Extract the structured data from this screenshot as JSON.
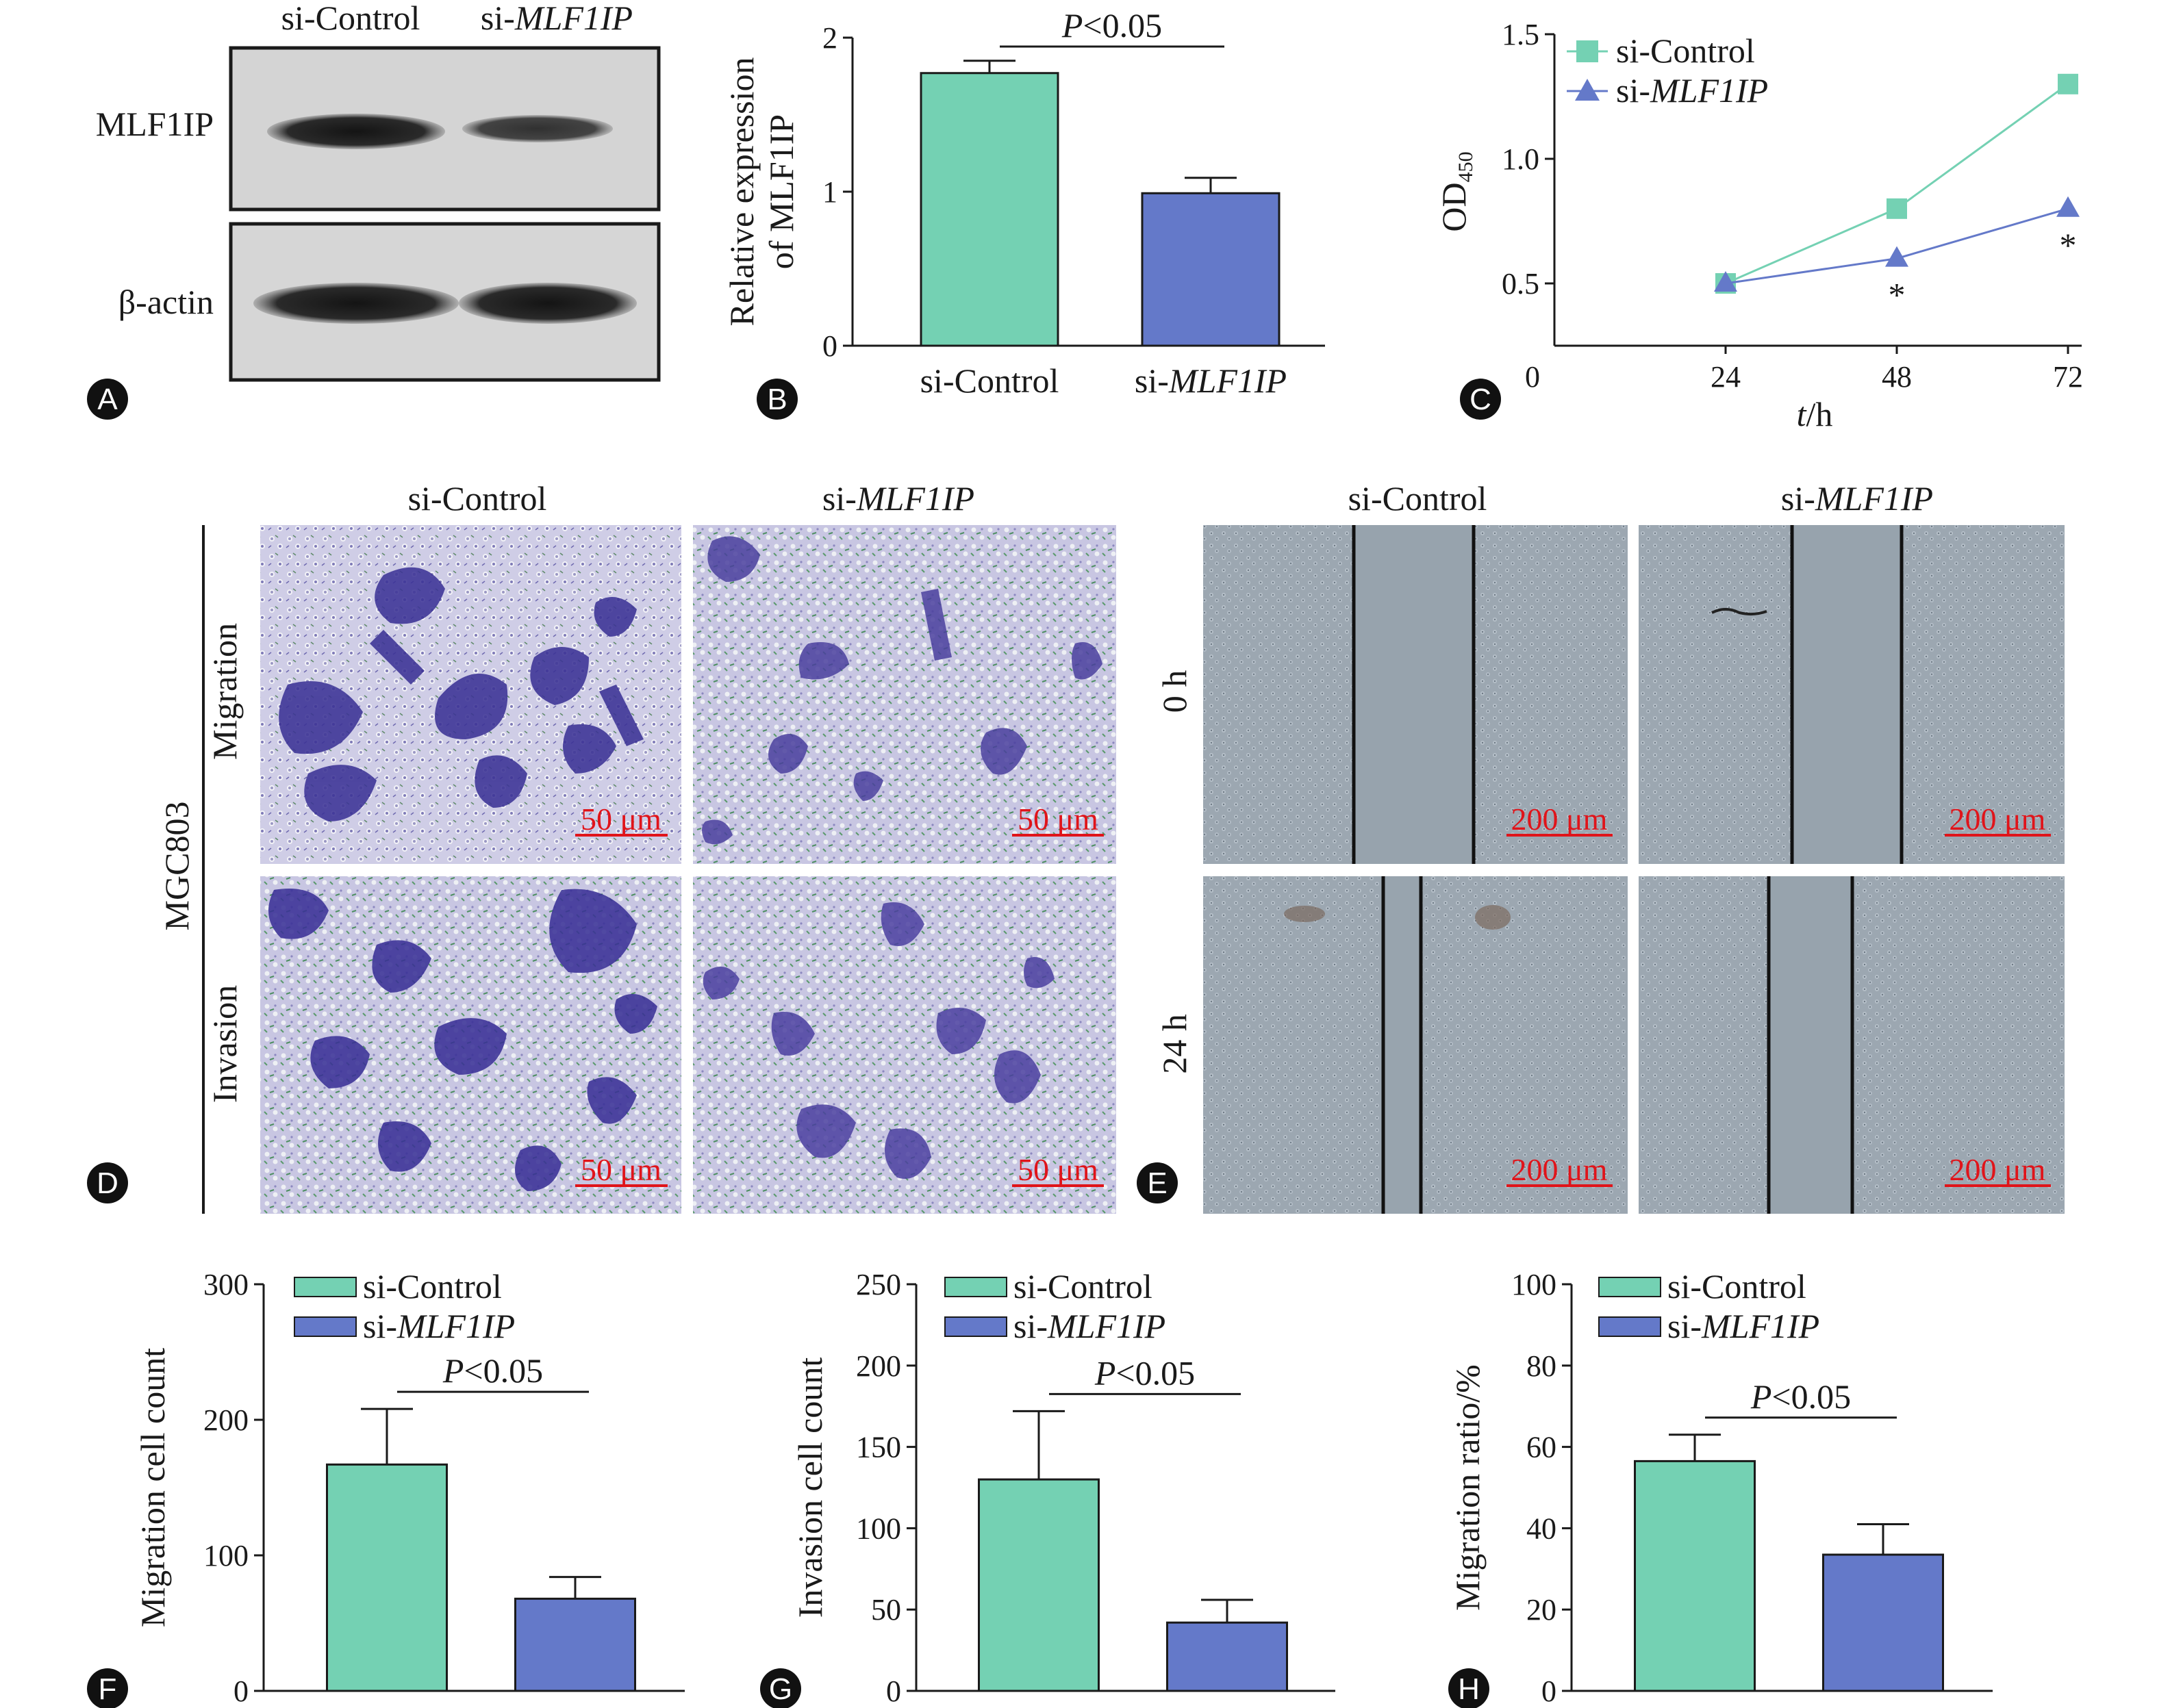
{
  "colors": {
    "control": "#74d1b3",
    "knockdown": "#6479c9",
    "scale_red": "#e0141a",
    "axis": "#1a1a1a"
  },
  "panel_letters": [
    "A",
    "B",
    "C",
    "D",
    "E",
    "F",
    "G",
    "H"
  ],
  "groups": {
    "prefix": "si-",
    "control": "si-Control",
    "knockdown_gene": "MLF1IP"
  },
  "panelA": {
    "row1": "MLF1IP",
    "row2": "β-actin"
  },
  "panelD": {
    "cell_line": "MGC803",
    "row1": "Migration",
    "row2": "Invasion",
    "scale": "50 μm"
  },
  "panelE": {
    "row1": "0 h",
    "row2": "24 h",
    "scale": "200 μm"
  },
  "chart_data": [
    {
      "panel": "B",
      "type": "bar",
      "ylabel_line1": "Relative expression",
      "ylabel_line2": "of MLF1IP",
      "ylim": [
        0,
        2
      ],
      "yticks": [
        "0",
        "1",
        "2"
      ],
      "categories": [
        "si-Control",
        "si-MLF1IP"
      ],
      "values": [
        1.77,
        0.99
      ],
      "errors": [
        0.08,
        0.1
      ],
      "sig": {
        "p": "P",
        "rest": "<0.05"
      }
    },
    {
      "panel": "C",
      "type": "line",
      "ylabel_main": "OD",
      "ylabel_sub": "450",
      "xlabel_italic": "t",
      "xlabel_rest": "/h",
      "origin": "0",
      "x": [
        24,
        48,
        72
      ],
      "xticks": [
        "24",
        "48",
        "72"
      ],
      "ylim": [
        0.25,
        1.5
      ],
      "yticks": [
        "0.5",
        "1.0",
        "1.5"
      ],
      "series": [
        {
          "name": "si-Control",
          "values": [
            0.5,
            0.8,
            1.3
          ]
        },
        {
          "name": "si-MLF1IP",
          "values": [
            0.5,
            0.6,
            0.8
          ]
        }
      ],
      "annotations": [
        "*",
        "*"
      ],
      "legend": "top-left"
    },
    {
      "panel": "F",
      "type": "bar",
      "ylabel": "Migration cell count",
      "ylim": [
        0,
        300
      ],
      "yticks": [
        "0",
        "100",
        "200",
        "300"
      ],
      "categories": [
        "si-Control",
        "si-MLF1IP"
      ],
      "values": [
        167,
        68
      ],
      "errors": [
        41,
        16
      ],
      "sig": {
        "p": "P",
        "rest": "<0.05"
      },
      "legend": "top-left"
    },
    {
      "panel": "G",
      "type": "bar",
      "ylabel": "Invasion cell count",
      "ylim": [
        0,
        250
      ],
      "yticks": [
        "0",
        "50",
        "100",
        "150",
        "200",
        "250"
      ],
      "categories": [
        "si-Control",
        "si-MLF1IP"
      ],
      "values": [
        130,
        42
      ],
      "errors": [
        42,
        14
      ],
      "sig": {
        "p": "P",
        "rest": "<0.05"
      },
      "legend": "top-left"
    },
    {
      "panel": "H",
      "type": "bar",
      "ylabel": "Migration ratio/%",
      "ylim": [
        0,
        100
      ],
      "yticks": [
        "0",
        "20",
        "40",
        "60",
        "80",
        "100"
      ],
      "categories": [
        "si-Control",
        "si-MLF1IP"
      ],
      "values": [
        56.5,
        33.5
      ],
      "errors": [
        6.5,
        7.5
      ],
      "sig": {
        "p": "P",
        "rest": "<0.05"
      },
      "legend": "top-left"
    }
  ]
}
